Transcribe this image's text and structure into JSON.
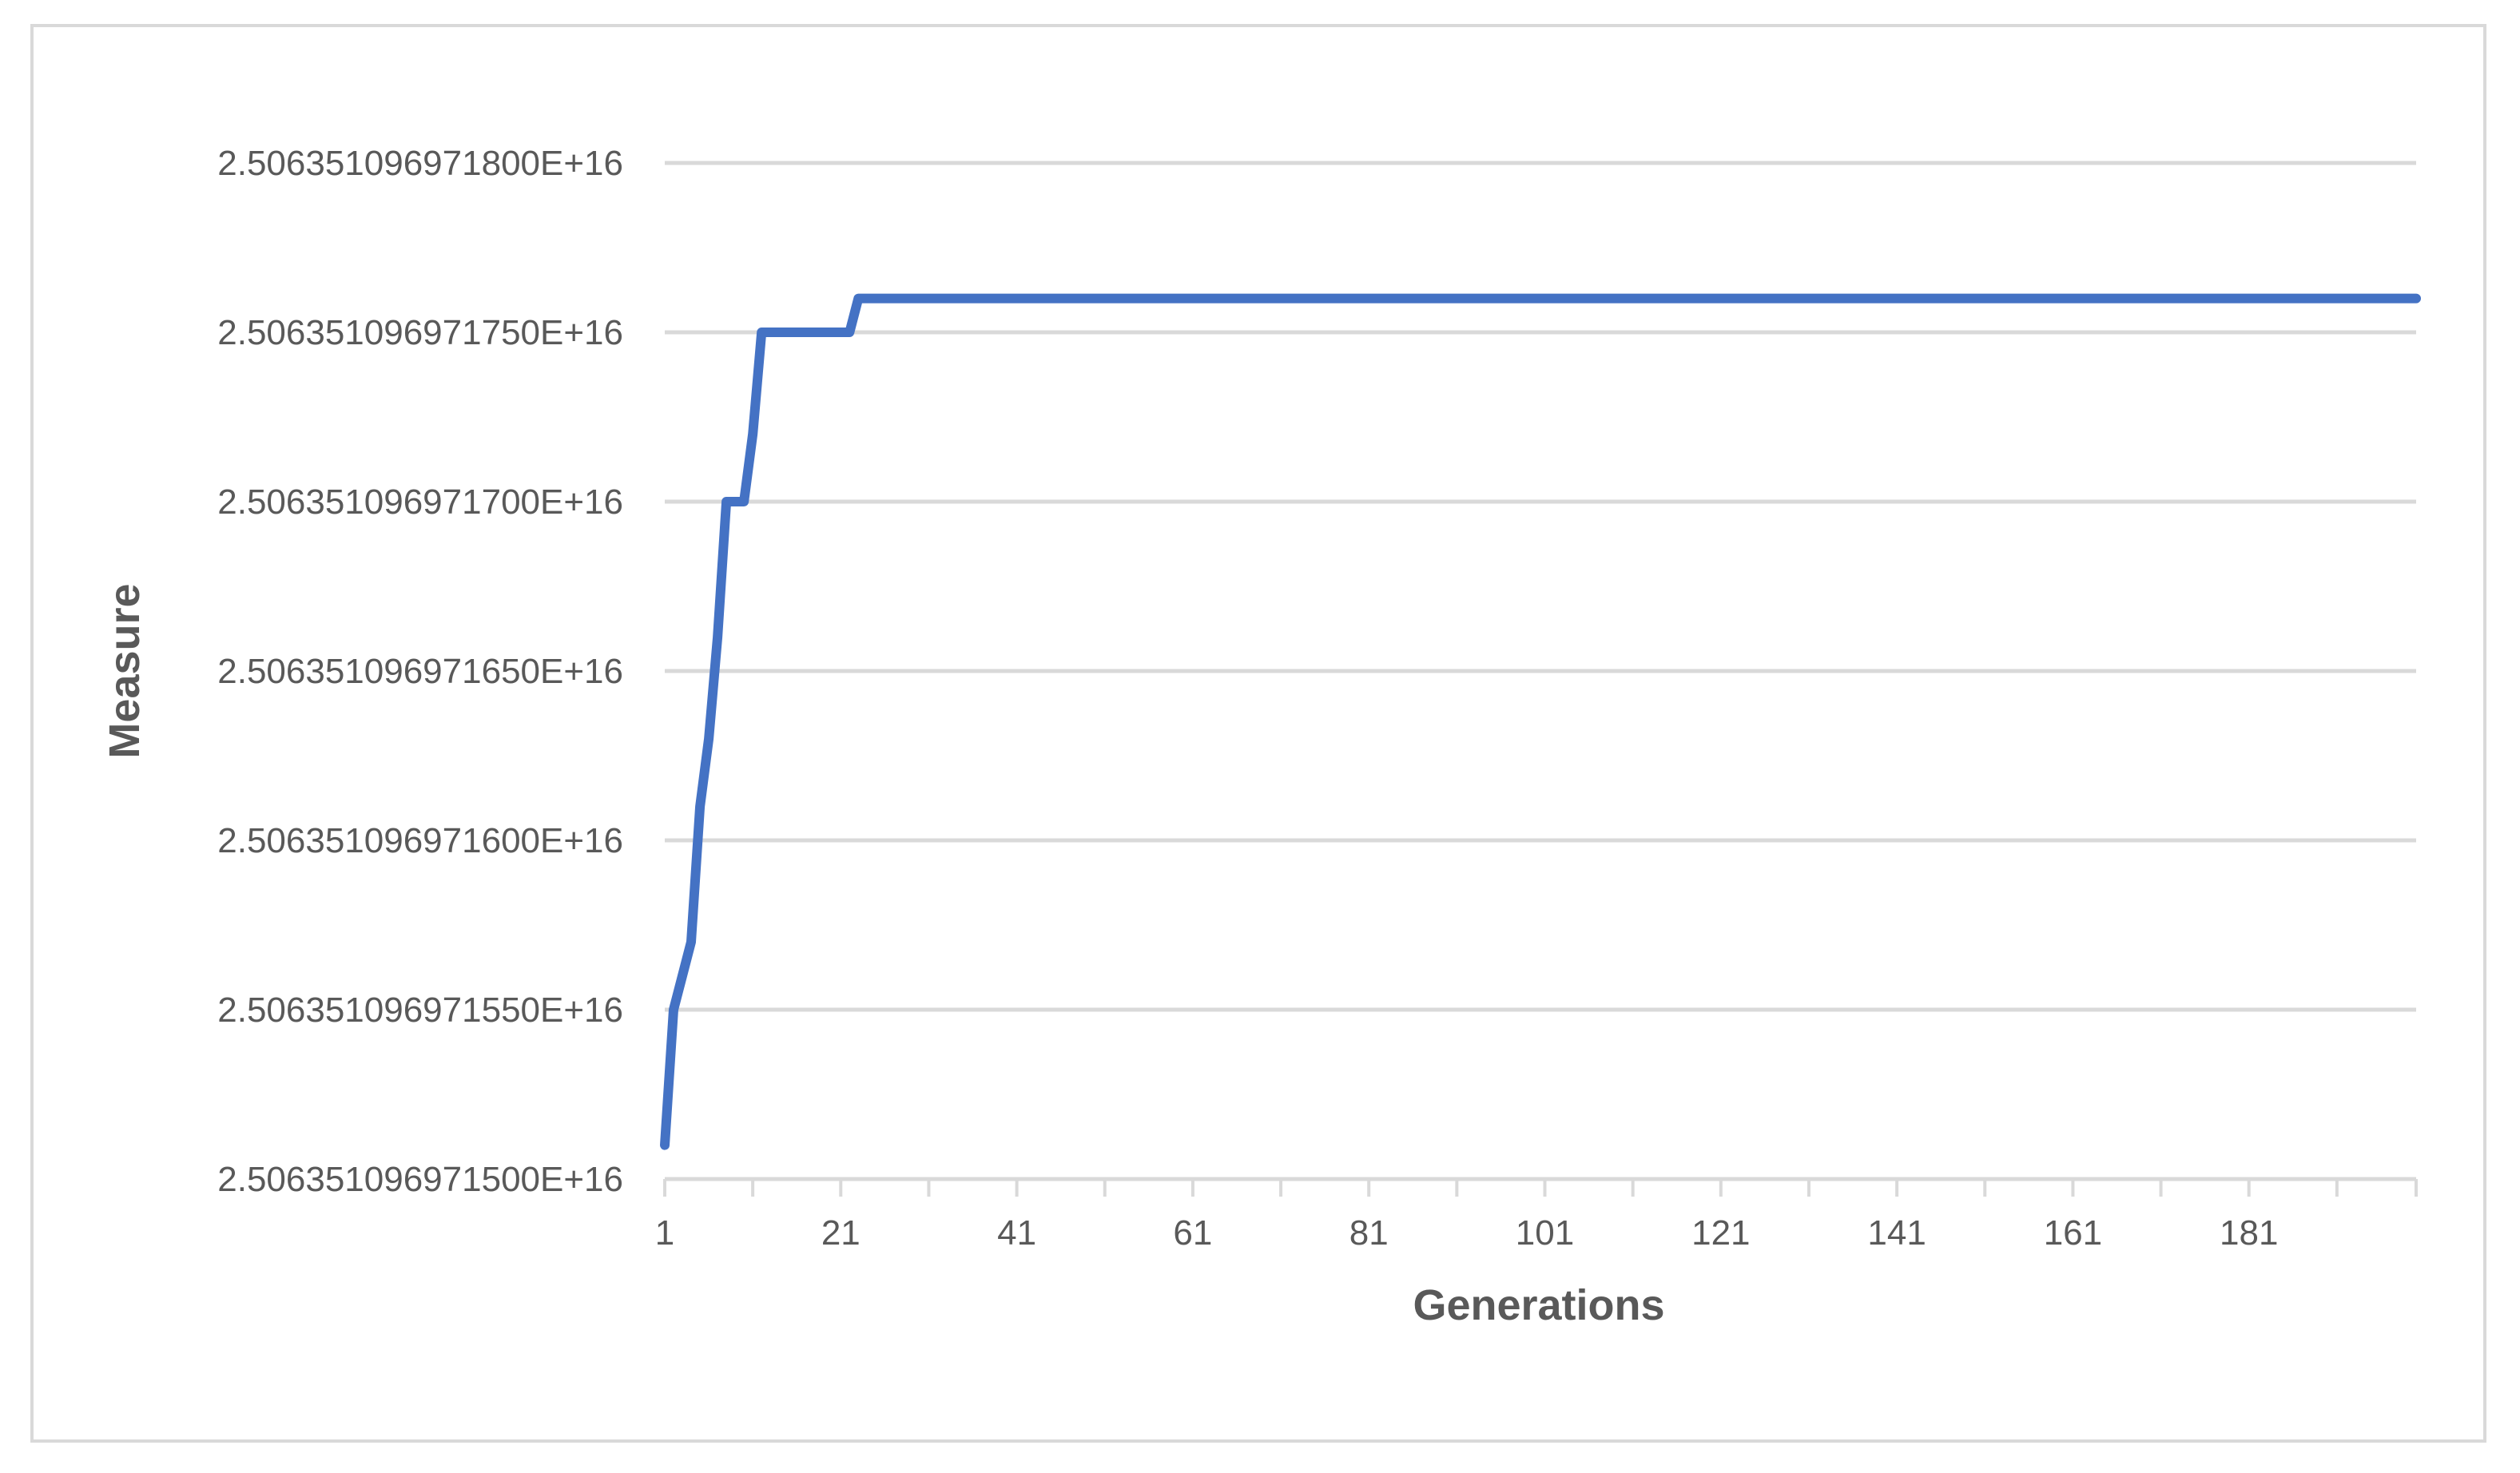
{
  "chart_data": {
    "type": "line",
    "title": "",
    "xlabel": "Generations",
    "ylabel": "Measure",
    "x_tick_labels": [
      "1",
      "21",
      "41",
      "61",
      "81",
      "101",
      "121",
      "141",
      "161",
      "181"
    ],
    "y_tick_labels": [
      "2.506351096971800E+16",
      "2.506351096971750E+16",
      "2.506351096971700E+16",
      "2.506351096971650E+16",
      "2.506351096971600E+16",
      "2.506351096971550E+16",
      "2.506351096971500E+16"
    ],
    "xlim": [
      1,
      200
    ],
    "ylim": [
      25063510969715000,
      25063510969718000
    ],
    "grid": true,
    "legend": "none",
    "series": [
      {
        "color": "#4472c4",
        "points": [
          [
            1,
            25063510969715100
          ],
          [
            2,
            25063510969715500
          ],
          [
            4,
            25063510969715700
          ],
          [
            5,
            25063510969716100
          ],
          [
            6,
            25063510969716300
          ],
          [
            7,
            25063510969716600
          ],
          [
            8,
            25063510969717000
          ],
          [
            10,
            25063510969717000
          ],
          [
            11,
            25063510969717200
          ],
          [
            12,
            25063510969717500
          ],
          [
            22,
            25063510969717500
          ],
          [
            23,
            25063510969717600
          ],
          [
            200,
            25063510969717600
          ]
        ]
      }
    ]
  }
}
